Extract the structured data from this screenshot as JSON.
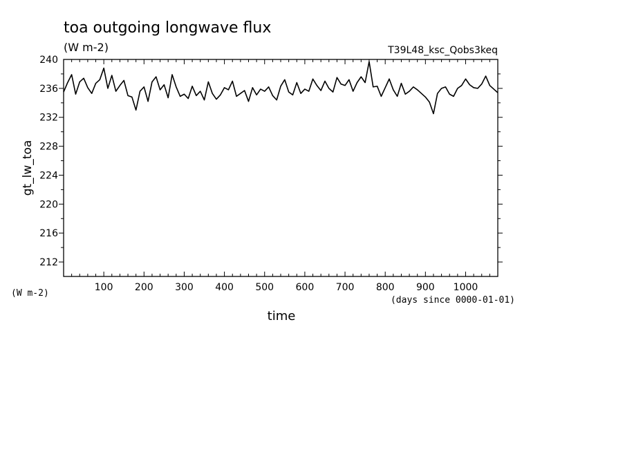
{
  "chart_data": {
    "type": "line",
    "title": "toa outgoing longwave flux",
    "subtitle": "(W m-2)",
    "run_label": "T39L48_ksc_Qobs3keq",
    "ylabel": "gt_lw_toa",
    "xlabel": "time",
    "x_units": "(days since 0000-01-01)",
    "y_units": "(W m-2)",
    "xlim": [
      0,
      1080
    ],
    "ylim": [
      210,
      240
    ],
    "x_ticks": [
      "100",
      "200",
      "300",
      "400",
      "500",
      "600",
      "700",
      "800",
      "900",
      "1000"
    ],
    "y_ticks": [
      "212",
      "216",
      "220",
      "224",
      "228",
      "232",
      "236",
      "240"
    ],
    "grid": false,
    "series": [
      {
        "color": "#000000",
        "x": [
          0,
          10,
          20,
          30,
          40,
          50,
          60,
          70,
          80,
          90,
          100,
          110,
          120,
          130,
          140,
          150,
          160,
          170,
          180,
          190,
          200,
          210,
          220,
          230,
          240,
          250,
          260,
          270,
          280,
          290,
          300,
          310,
          320,
          330,
          340,
          350,
          360,
          370,
          380,
          390,
          400,
          410,
          420,
          430,
          440,
          450,
          460,
          470,
          480,
          490,
          500,
          510,
          520,
          530,
          540,
          550,
          560,
          570,
          580,
          590,
          600,
          610,
          620,
          630,
          640,
          650,
          660,
          670,
          680,
          690,
          700,
          710,
          720,
          730,
          740,
          750,
          760,
          770,
          780,
          790,
          800,
          810,
          820,
          830,
          840,
          850,
          860,
          870,
          880,
          890,
          900,
          910,
          920,
          930,
          940,
          950,
          960,
          970,
          980,
          990,
          1000,
          1010,
          1020,
          1030,
          1040,
          1050,
          1060,
          1070,
          1080
        ],
        "y": [
          235.5,
          236.8,
          237.9,
          235.2,
          236.9,
          237.4,
          236.1,
          235.3,
          236.7,
          237.2,
          238.8,
          236.0,
          237.8,
          235.6,
          236.4,
          237.1,
          235.0,
          234.8,
          233.0,
          235.6,
          236.2,
          234.2,
          236.9,
          237.6,
          235.8,
          236.5,
          234.7,
          237.9,
          236.2,
          234.9,
          235.2,
          234.6,
          236.3,
          235.0,
          235.6,
          234.4,
          236.9,
          235.3,
          234.5,
          235.1,
          236.1,
          235.8,
          237.0,
          234.9,
          235.3,
          235.7,
          234.2,
          236.1,
          235.1,
          235.9,
          235.6,
          236.2,
          235.0,
          234.4,
          236.3,
          237.2,
          235.5,
          235.1,
          236.8,
          235.3,
          235.9,
          235.6,
          237.3,
          236.4,
          235.7,
          237.0,
          236.0,
          235.5,
          237.5,
          236.6,
          236.4,
          237.2,
          235.6,
          236.8,
          237.6,
          236.8,
          239.7,
          236.2,
          236.3,
          234.9,
          236.1,
          237.3,
          235.8,
          234.9,
          236.7,
          235.2,
          235.6,
          236.2,
          235.8,
          235.3,
          234.8,
          234.1,
          232.5,
          235.3,
          236.0,
          236.2,
          235.2,
          234.9,
          236.0,
          236.4,
          237.3,
          236.5,
          236.1,
          236.0,
          236.6,
          237.7,
          236.4,
          235.9,
          235.4
        ]
      }
    ]
  }
}
